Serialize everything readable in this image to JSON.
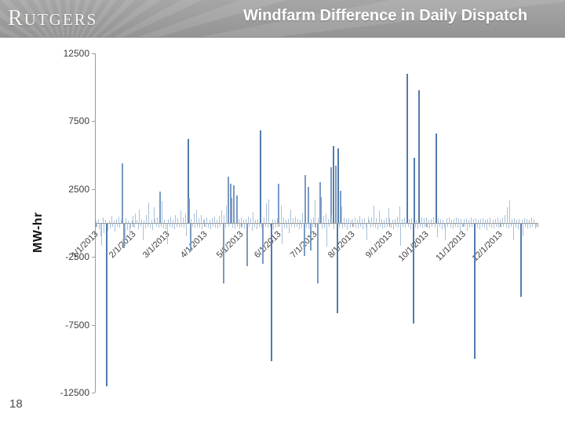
{
  "header": {
    "logo_text": "RUTGERS",
    "title": "Windfarm Difference in Daily Dispatch"
  },
  "page_number": "18",
  "chart_data": {
    "type": "bar",
    "title": "Windfarm Difference in Daily Dispatch",
    "xlabel": "",
    "ylabel": "MW-hr",
    "ylim": [
      -12500,
      12500
    ],
    "y_major_unit": 5000,
    "y_ticks": [
      12500,
      7500,
      2500,
      -2500,
      -7500,
      -12500
    ],
    "grid": "off",
    "legend": "none",
    "x_tick_labels": [
      "1/1/2013",
      "2/1/2013",
      "3/1/2013",
      "4/1/2013",
      "5/1/2013",
      "6/1/2013",
      "7/1/2013",
      "8/1/2013",
      "9/1/2013",
      "10/1/2013",
      "11/1/2013",
      "12/1/2013"
    ],
    "month_start_day_index": [
      0,
      31,
      59,
      90,
      120,
      151,
      181,
      212,
      243,
      273,
      304,
      334
    ],
    "colors": {
      "bar_small": "#a9c0d9",
      "bar_medium": "#7b9ac4",
      "bar_large": "#527cab",
      "axis": "#9b9b9b",
      "text": "#3d3d3d"
    },
    "values": [
      150,
      -250,
      300,
      -400,
      -900,
      -1600,
      400,
      -700,
      250,
      -12000,
      -500,
      200,
      -350,
      500,
      -250,
      150,
      -600,
      300,
      -200,
      450,
      -300,
      250,
      4400,
      -1800,
      -1240,
      350,
      -450,
      200,
      -900,
      -300,
      150,
      500,
      -300,
      700,
      250,
      -400,
      1000,
      -250,
      300,
      -1240,
      200,
      -350,
      600,
      -200,
      1500,
      -300,
      250,
      -450,
      1150,
      300,
      -250,
      400,
      -300,
      2300,
      -200,
      1600,
      -350,
      250,
      -400,
      -1520,
      300,
      -250,
      450,
      -300,
      250,
      -400,
      600,
      -200,
      350,
      -300,
      900,
      -250,
      400,
      -300,
      700,
      -900,
      6200,
      1800,
      -2000,
      300,
      -250,
      700,
      -300,
      1000,
      -250,
      350,
      -300,
      600,
      -400,
      250,
      300,
      -250,
      400,
      -300,
      250,
      -400,
      350,
      -200,
      450,
      -300,
      250,
      -350,
      500,
      -250,
      900,
      -4400,
      600,
      -300,
      1300,
      3400,
      -250,
      2900,
      1840,
      -300,
      2800,
      -350,
      2040,
      -250,
      300,
      -400,
      400,
      -300,
      250,
      -350,
      300,
      -3150,
      450,
      -250,
      350,
      -500,
      800,
      -300,
      250,
      -400,
      300,
      -250,
      6850,
      -300,
      -2960,
      400,
      -250,
      1440,
      -300,
      1720,
      -250,
      -10150,
      300,
      -400,
      250,
      -300,
      350,
      2900,
      -250,
      1250,
      -1520,
      400,
      -300,
      250,
      -350,
      300,
      -700,
      970,
      -250,
      350,
      -300,
      450,
      -250,
      300,
      -400,
      250,
      -300,
      780,
      -2380,
      3550,
      -300,
      2690,
      -350,
      -1980,
      300,
      -250,
      400,
      1700,
      -300,
      -4400,
      400,
      3000,
      1900,
      -350,
      500,
      -300,
      700,
      -1700,
      300,
      -250,
      4100,
      600,
      5700,
      -400,
      4200,
      -6600,
      5500,
      -300,
      2400,
      1200,
      -350,
      400,
      -250,
      300,
      -400,
      350,
      -300,
      250,
      300,
      -250,
      400,
      -300,
      250,
      -350,
      500,
      -250,
      300,
      -400,
      350,
      -300,
      -1240,
      450,
      250,
      -300,
      400,
      -250,
      1250,
      -300,
      350,
      -400,
      900,
      -250,
      300,
      -350,
      250,
      -300,
      400,
      -250,
      1100,
      350,
      -300,
      250,
      -400,
      300,
      -250,
      450,
      -300,
      1200,
      -1600,
      300,
      -250,
      400,
      -300,
      11000,
      -250,
      300,
      -400,
      350,
      -7370,
      4800,
      -300,
      250,
      -350,
      9800,
      -250,
      400,
      -300,
      350,
      -250,
      400,
      -300,
      250,
      -350,
      300,
      -250,
      450,
      -300,
      6570,
      -1000,
      350,
      -250,
      300,
      -400,
      250,
      -300,
      -1240,
      350,
      -250,
      400,
      -300,
      250,
      -350,
      300,
      -250,
      400,
      -300,
      350,
      -700,
      300,
      -250,
      300,
      -250,
      350,
      -500,
      250,
      -300,
      400,
      -250,
      300,
      -9960,
      350,
      -300,
      250,
      -400,
      300,
      -250,
      350,
      -300,
      250,
      -450,
      300,
      -250,
      400,
      -300,
      250,
      -350,
      300,
      -250,
      400,
      -300,
      250,
      -300,
      400,
      -250,
      600,
      -300,
      1160,
      -350,
      1700,
      -250,
      300,
      -1240,
      350,
      -300,
      250,
      -400,
      300,
      -5360,
      250,
      -900,
      350,
      -250,
      300,
      -350,
      250,
      -300,
      400,
      -250,
      300,
      -350,
      -250
    ]
  }
}
